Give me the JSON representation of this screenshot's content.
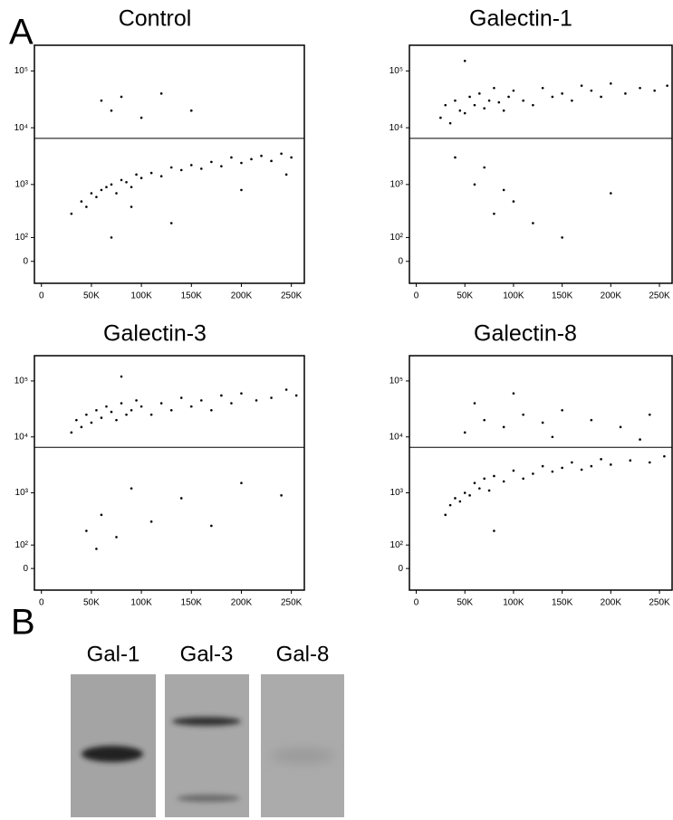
{
  "panels": {
    "a": "A",
    "b": "B"
  },
  "blot": {
    "lanes": [
      "Gal-1",
      "Gal-3",
      "Gal-8"
    ]
  },
  "chart_data": [
    {
      "type": "scatter",
      "title": "Control",
      "yscale": "biex",
      "color": "#000000",
      "xlim": [
        -7000,
        263000
      ],
      "ylim": [
        -90,
        283000
      ],
      "xticks": [
        0,
        {
          "value": 50000,
          "label": "50K"
        },
        {
          "value": 100000,
          "label": "100K"
        },
        {
          "value": 150000,
          "label": "150K"
        },
        {
          "value": 200000,
          "label": "200K"
        },
        {
          "value": 250000,
          "label": "250K"
        }
      ],
      "yticks": [
        0,
        {
          "value": 100,
          "label": "10²"
        },
        {
          "value": 1000,
          "label": "10³"
        },
        {
          "value": 10000,
          "label": "10⁴"
        },
        {
          "value": 100000,
          "label": "10⁵"
        }
      ],
      "gate": 6500,
      "x": [
        30000,
        40000,
        45000,
        50000,
        55000,
        60000,
        65000,
        70000,
        75000,
        80000,
        85000,
        90000,
        95000,
        100000,
        110000,
        120000,
        130000,
        140000,
        150000,
        160000,
        170000,
        180000,
        190000,
        200000,
        210000,
        220000,
        230000,
        240000,
        250000,
        60000,
        70000,
        80000,
        100000,
        120000,
        150000,
        90000,
        130000,
        70000,
        200000,
        245000
      ],
      "y": [
        300,
        500,
        400,
        700,
        600,
        800,
        900,
        1000,
        700,
        1200,
        1100,
        900,
        1500,
        1300,
        1600,
        1400,
        2000,
        1800,
        2200,
        1900,
        2500,
        2100,
        3000,
        2400,
        2800,
        3200,
        2600,
        3500,
        3000,
        30000,
        20000,
        35000,
        15000,
        40000,
        20000,
        400,
        200,
        100,
        800,
        1500
      ]
    },
    {
      "type": "scatter",
      "title": "Galectin-1",
      "yscale": "biex",
      "color": "#000000",
      "xlim": [
        -7000,
        263000
      ],
      "ylim": [
        -90,
        283000
      ],
      "xticks": [
        0,
        {
          "value": 50000,
          "label": "50K"
        },
        {
          "value": 100000,
          "label": "100K"
        },
        {
          "value": 150000,
          "label": "150K"
        },
        {
          "value": 200000,
          "label": "200K"
        },
        {
          "value": 250000,
          "label": "250K"
        }
      ],
      "yticks": [
        0,
        {
          "value": 100,
          "label": "10²"
        },
        {
          "value": 1000,
          "label": "10³"
        },
        {
          "value": 10000,
          "label": "10⁴"
        },
        {
          "value": 100000,
          "label": "10⁵"
        }
      ],
      "gate": 6500,
      "x": [
        25000,
        30000,
        35000,
        40000,
        45000,
        50000,
        55000,
        60000,
        65000,
        70000,
        75000,
        80000,
        85000,
        90000,
        95000,
        100000,
        110000,
        120000,
        130000,
        140000,
        150000,
        160000,
        170000,
        180000,
        190000,
        200000,
        215000,
        230000,
        245000,
        258000,
        40000,
        60000,
        80000,
        100000,
        120000,
        70000,
        90000,
        50000,
        150000,
        200000
      ],
      "y": [
        15000,
        25000,
        12000,
        30000,
        20000,
        18000,
        35000,
        25000,
        40000,
        22000,
        30000,
        50000,
        28000,
        20000,
        35000,
        45000,
        30000,
        25000,
        50000,
        35000,
        40000,
        30000,
        55000,
        45000,
        35000,
        60000,
        40000,
        50000,
        45000,
        55000,
        3000,
        1000,
        300,
        500,
        200,
        2000,
        800,
        150000,
        100,
        700
      ]
    },
    {
      "type": "scatter",
      "title": "Galectin-3",
      "yscale": "biex",
      "color": "#000000",
      "xlim": [
        -7000,
        263000
      ],
      "ylim": [
        -90,
        283000
      ],
      "xticks": [
        0,
        {
          "value": 50000,
          "label": "50K"
        },
        {
          "value": 100000,
          "label": "100K"
        },
        {
          "value": 150000,
          "label": "150K"
        },
        {
          "value": 200000,
          "label": "200K"
        },
        {
          "value": 250000,
          "label": "250K"
        }
      ],
      "yticks": [
        0,
        {
          "value": 100,
          "label": "10²"
        },
        {
          "value": 1000,
          "label": "10³"
        },
        {
          "value": 10000,
          "label": "10⁴"
        },
        {
          "value": 100000,
          "label": "10⁵"
        }
      ],
      "gate": 6500,
      "x": [
        30000,
        35000,
        40000,
        45000,
        50000,
        55000,
        60000,
        65000,
        70000,
        75000,
        80000,
        85000,
        90000,
        95000,
        100000,
        110000,
        120000,
        130000,
        140000,
        150000,
        160000,
        170000,
        180000,
        190000,
        200000,
        215000,
        230000,
        245000,
        255000,
        45000,
        60000,
        75000,
        90000,
        110000,
        140000,
        170000,
        200000,
        55000,
        80000,
        240000
      ],
      "y": [
        12000,
        20000,
        15000,
        25000,
        18000,
        30000,
        22000,
        35000,
        28000,
        20000,
        40000,
        25000,
        30000,
        45000,
        35000,
        25000,
        40000,
        30000,
        50000,
        35000,
        45000,
        30000,
        55000,
        40000,
        60000,
        45000,
        50000,
        70000,
        55000,
        200,
        400,
        150,
        1200,
        300,
        800,
        250,
        1500,
        80,
        120000,
        900
      ]
    },
    {
      "type": "scatter",
      "title": "Galectin-8",
      "yscale": "biex",
      "color": "#000000",
      "xlim": [
        -7000,
        263000
      ],
      "ylim": [
        -90,
        283000
      ],
      "xticks": [
        0,
        {
          "value": 50000,
          "label": "50K"
        },
        {
          "value": 100000,
          "label": "100K"
        },
        {
          "value": 150000,
          "label": "150K"
        },
        {
          "value": 200000,
          "label": "200K"
        },
        {
          "value": 250000,
          "label": "250K"
        }
      ],
      "yticks": [
        0,
        {
          "value": 100,
          "label": "10²"
        },
        {
          "value": 1000,
          "label": "10³"
        },
        {
          "value": 10000,
          "label": "10⁴"
        },
        {
          "value": 100000,
          "label": "10⁵"
        }
      ],
      "gate": 6500,
      "x": [
        30000,
        35000,
        40000,
        45000,
        50000,
        55000,
        60000,
        65000,
        70000,
        75000,
        80000,
        90000,
        100000,
        110000,
        120000,
        130000,
        140000,
        150000,
        160000,
        170000,
        180000,
        190000,
        200000,
        220000,
        240000,
        255000,
        50000,
        70000,
        90000,
        110000,
        130000,
        150000,
        180000,
        210000,
        240000,
        60000,
        100000,
        140000,
        80000,
        230000
      ],
      "y": [
        400,
        600,
        800,
        700,
        1000,
        900,
        1500,
        1200,
        1800,
        1100,
        2000,
        1600,
        2500,
        1800,
        2200,
        3000,
        2400,
        2800,
        3500,
        2600,
        3000,
        4000,
        3200,
        3800,
        3500,
        4500,
        12000,
        20000,
        15000,
        25000,
        18000,
        30000,
        20000,
        15000,
        25000,
        40000,
        60000,
        10000,
        200,
        9000
      ]
    }
  ]
}
